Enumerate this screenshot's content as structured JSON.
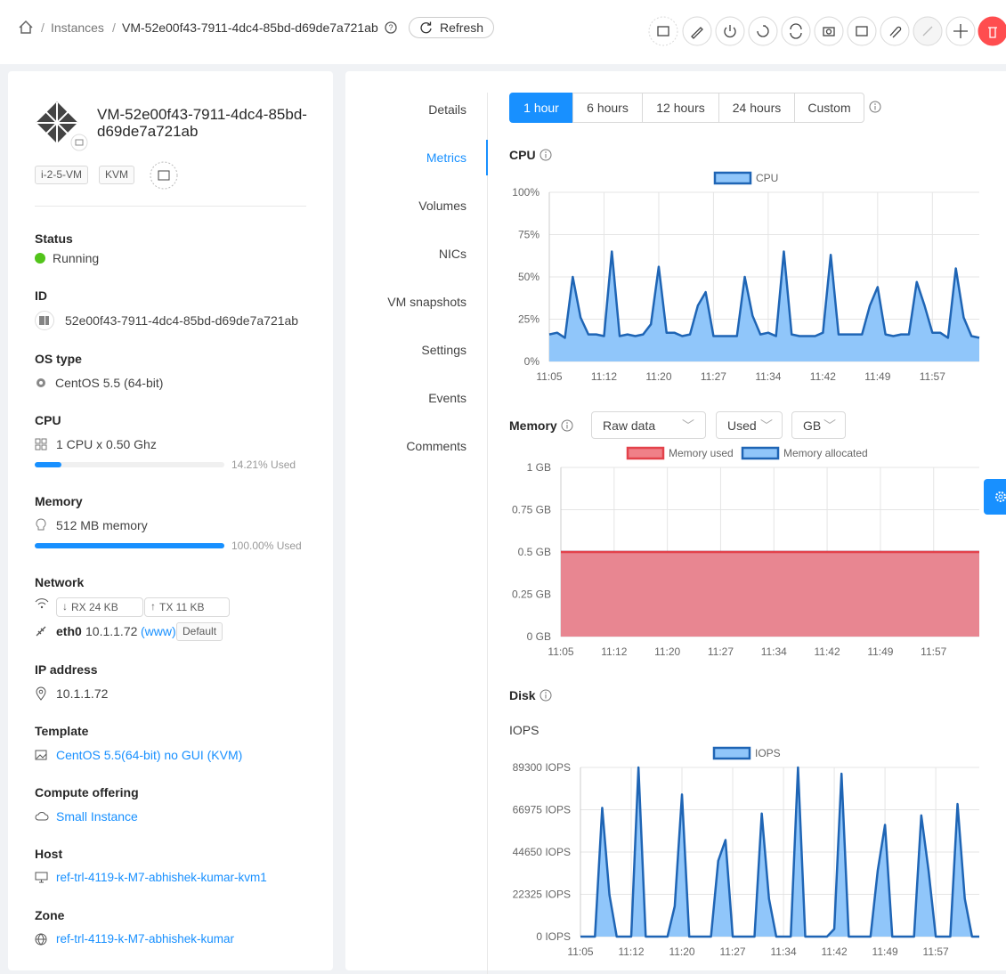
{
  "header": {
    "breadcrumb": [
      "Instances",
      "VM-52e00f43-7911-4dc4-85bd-d69de7a721ab"
    ],
    "refresh": "Refresh"
  },
  "vm": {
    "name": "VM-52e00f43-7911-4dc4-85bd-d69de7a721ab",
    "tags": [
      "i-2-5-VM",
      "KVM"
    ],
    "status": {
      "label": "Status",
      "value": "Running"
    },
    "id": {
      "label": "ID",
      "value": "52e00f43-7911-4dc4-85bd-d69de7a721ab"
    },
    "os": {
      "label": "OS type",
      "value": "CentOS 5.5 (64-bit)"
    },
    "cpu": {
      "label": "CPU",
      "value": "1 CPU x 0.50 Ghz",
      "used": 14.21,
      "used_label": "14.21% Used"
    },
    "memory": {
      "label": "Memory",
      "value": "512 MB memory",
      "used": 100,
      "used_label": "100.00% Used"
    },
    "network": {
      "label": "Network",
      "rx": "RX 24 KB",
      "tx": "TX 11 KB",
      "nic": "eth0",
      "ip": "10.1.1.72",
      "network_name": "(www)",
      "tag": "Default"
    },
    "ip_address": {
      "label": "IP address",
      "value": "10.1.1.72"
    },
    "template": {
      "label": "Template",
      "value": "CentOS 5.5(64-bit) no GUI (KVM)"
    },
    "compute_offering": {
      "label": "Compute offering",
      "value": "Small Instance"
    },
    "host": {
      "label": "Host",
      "value": "ref-trl-4119-k-M7-abhishek-kumar-kvm1"
    },
    "zone": {
      "label": "Zone",
      "value": "ref-trl-4119-k-M7-abhishek-kumar"
    }
  },
  "tabs": [
    "Details",
    "Metrics",
    "Volumes",
    "NICs",
    "VM snapshots",
    "Settings",
    "Events",
    "Comments"
  ],
  "active_tab": "Metrics",
  "time_ranges": [
    "1 hour",
    "6 hours",
    "12 hours",
    "24 hours",
    "Custom"
  ],
  "sections": {
    "cpu": "CPU",
    "memory": "Memory",
    "disk": "Disk",
    "iops": "IOPS"
  },
  "memory_filters": [
    "Raw data",
    "Used",
    "GB"
  ],
  "chart_data": [
    {
      "type": "area",
      "categories": [
        "11:05",
        null,
        null,
        null,
        null,
        null,
        null,
        "11:12",
        null,
        null,
        null,
        null,
        null,
        null,
        "11:20",
        null,
        null,
        null,
        null,
        null,
        null,
        "11:27",
        null,
        null,
        null,
        null,
        null,
        null,
        "11:34",
        null,
        null,
        null,
        null,
        null,
        null,
        "11:42",
        null,
        null,
        null,
        null,
        null,
        null,
        "11:49",
        null,
        null,
        null,
        null,
        null,
        null,
        "11:57",
        null,
        null,
        null,
        null,
        null,
        null
      ],
      "series": [
        {
          "name": "CPU",
          "color": "#1f65b5",
          "fill": "#90c6fa",
          "values": [
            16,
            17,
            14,
            50,
            26,
            16,
            16,
            15,
            65,
            15,
            16,
            15,
            16,
            22,
            56,
            17,
            17,
            15,
            16,
            33,
            41,
            15,
            15,
            15,
            15,
            50,
            27,
            16,
            17,
            15,
            65,
            16,
            15,
            15,
            15,
            17,
            63,
            16,
            16,
            16,
            16,
            33,
            44,
            16,
            15,
            16,
            16,
            47,
            33,
            17,
            17,
            14,
            55,
            26,
            15,
            14
          ]
        }
      ],
      "ylim": [
        0,
        100
      ],
      "yticks": [
        {
          "value": 0,
          "label": "0%"
        },
        {
          "value": 25,
          "label": "25%"
        },
        {
          "value": 50,
          "label": "50%"
        },
        {
          "value": 75,
          "label": "75%"
        },
        {
          "value": 100,
          "label": "100%"
        }
      ],
      "grid": true
    },
    {
      "type": "area",
      "categories": [
        "11:05",
        null,
        null,
        null,
        null,
        null,
        null,
        "11:12",
        null,
        null,
        null,
        null,
        null,
        null,
        "11:20",
        null,
        null,
        null,
        null,
        null,
        null,
        "11:27",
        null,
        null,
        null,
        null,
        null,
        null,
        "11:34",
        null,
        null,
        null,
        null,
        null,
        null,
        "11:42",
        null,
        null,
        null,
        null,
        null,
        null,
        "11:49",
        null,
        null,
        null,
        null,
        null,
        null,
        "11:57",
        null,
        null,
        null,
        null,
        null,
        null
      ],
      "series": [
        {
          "name": "Memory used",
          "color": "#e3424b",
          "fill": "#f08088",
          "values": [
            0.5,
            0.5,
            0.5,
            0.5,
            0.5,
            0.5,
            0.5,
            0.5,
            0.5,
            0.5,
            0.5,
            0.5,
            0.5,
            0.5,
            0.5,
            0.5,
            0.5,
            0.5,
            0.5,
            0.5,
            0.5,
            0.5,
            0.5,
            0.5,
            0.5,
            0.5,
            0.5,
            0.5,
            0.5,
            0.5,
            0.5,
            0.5,
            0.5,
            0.5,
            0.5,
            0.5,
            0.5,
            0.5,
            0.5,
            0.5,
            0.5,
            0.5,
            0.5,
            0.5,
            0.5,
            0.5,
            0.5,
            0.5,
            0.5,
            0.5,
            0.5,
            0.5,
            0.5,
            0.5,
            0.5,
            0.5
          ]
        },
        {
          "name": "Memory allocated",
          "color": "#1f65b5",
          "fill": "#90c6fa",
          "values": [
            0.5,
            0.5,
            0.5,
            0.5,
            0.5,
            0.5,
            0.5,
            0.5,
            0.5,
            0.5,
            0.5,
            0.5,
            0.5,
            0.5,
            0.5,
            0.5,
            0.5,
            0.5,
            0.5,
            0.5,
            0.5,
            0.5,
            0.5,
            0.5,
            0.5,
            0.5,
            0.5,
            0.5,
            0.5,
            0.5,
            0.5,
            0.5,
            0.5,
            0.5,
            0.5,
            0.5,
            0.5,
            0.5,
            0.5,
            0.5,
            0.5,
            0.5,
            0.5,
            0.5,
            0.5,
            0.5,
            0.5,
            0.5,
            0.5,
            0.5,
            0.5,
            0.5,
            0.5,
            0.5,
            0.5,
            0.5
          ]
        }
      ],
      "ylim": [
        0,
        1
      ],
      "yticks": [
        {
          "value": 0,
          "label": "0 GB"
        },
        {
          "value": 0.25,
          "label": "0.25 GB"
        },
        {
          "value": 0.5,
          "label": "0.5 GB"
        },
        {
          "value": 0.75,
          "label": "0.75 GB"
        },
        {
          "value": 1,
          "label": "1 GB"
        }
      ],
      "grid": true
    },
    {
      "type": "area",
      "categories": [
        "11:05",
        null,
        null,
        null,
        null,
        null,
        null,
        "11:12",
        null,
        null,
        null,
        null,
        null,
        null,
        "11:20",
        null,
        null,
        null,
        null,
        null,
        null,
        "11:27",
        null,
        null,
        null,
        null,
        null,
        null,
        "11:34",
        null,
        null,
        null,
        null,
        null,
        null,
        "11:42",
        null,
        null,
        null,
        null,
        null,
        null,
        "11:49",
        null,
        null,
        null,
        null,
        null,
        null,
        "11:57",
        null,
        null,
        null,
        null,
        null,
        null
      ],
      "series": [
        {
          "name": "IOPS",
          "color": "#1f65b5",
          "fill": "#90c6fa",
          "values": [
            0,
            0,
            0,
            68000,
            22000,
            0,
            0,
            0,
            89300,
            0,
            0,
            0,
            0,
            16000,
            75000,
            0,
            0,
            0,
            0,
            40000,
            51000,
            0,
            0,
            0,
            0,
            65000,
            20000,
            0,
            0,
            0,
            89300,
            0,
            0,
            0,
            0,
            4000,
            86000,
            0,
            0,
            0,
            0,
            35000,
            59000,
            0,
            0,
            0,
            0,
            64000,
            35000,
            0,
            0,
            0,
            70000,
            20000,
            0,
            0
          ]
        }
      ],
      "ylim": [
        0,
        89300
      ],
      "yticks": [
        {
          "value": 0,
          "label": "0 IOPS"
        },
        {
          "value": 22325,
          "label": "22325 IOPS"
        },
        {
          "value": 44650,
          "label": "44650 IOPS"
        },
        {
          "value": 66975,
          "label": "66975 IOPS"
        },
        {
          "value": 89300,
          "label": "89300 IOPS"
        }
      ],
      "grid": true
    }
  ]
}
